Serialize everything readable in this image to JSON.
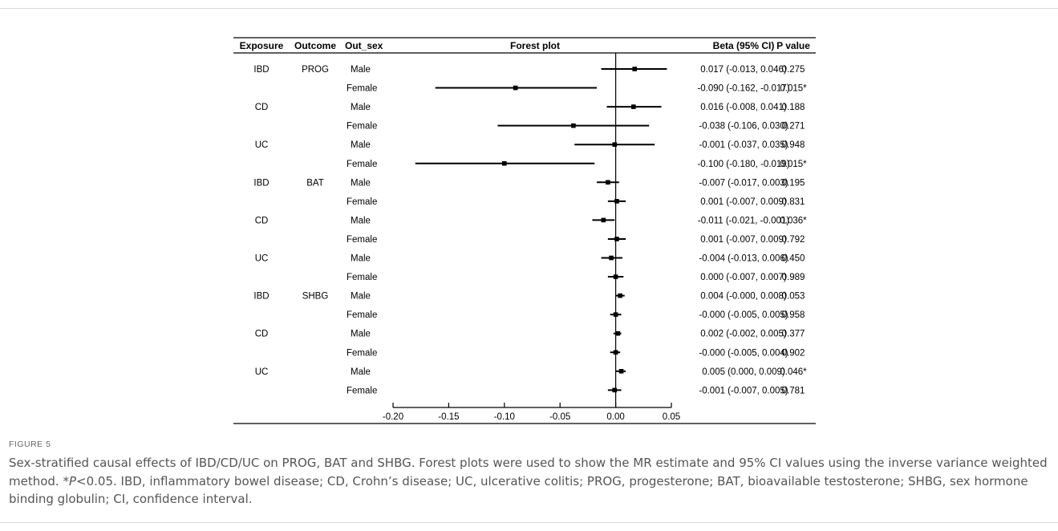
{
  "chart_data": {
    "type": "forest",
    "headers": {
      "exposure": "Exposure",
      "outcome": "Outcome",
      "out_sex": "Out_sex",
      "plot": "Forest plot",
      "beta": "Beta (95% CI)",
      "pvalue": "P value"
    },
    "xlim": [
      -0.2,
      0.05
    ],
    "xticks": [
      "-0.20",
      "-0.15",
      "-0.10",
      "-0.05",
      "0.00",
      "0.05"
    ],
    "reference_line": 0,
    "rows": [
      {
        "exposure": "IBD",
        "outcome": "PROG",
        "sex": "Male",
        "beta": 0.017,
        "lo": -0.013,
        "hi": 0.046,
        "ci_text": "0.017 (-0.013, 0.046)",
        "p": "0.275"
      },
      {
        "exposure": "",
        "outcome": "",
        "sex": "Female",
        "beta": -0.09,
        "lo": -0.162,
        "hi": -0.017,
        "ci_text": "-0.090 (-0.162, -0.017)",
        "p": "0.015*"
      },
      {
        "exposure": "CD",
        "outcome": "",
        "sex": "Male",
        "beta": 0.016,
        "lo": -0.008,
        "hi": 0.041,
        "ci_text": "0.016 (-0.008, 0.041)",
        "p": "0.188"
      },
      {
        "exposure": "",
        "outcome": "",
        "sex": "Female",
        "beta": -0.038,
        "lo": -0.106,
        "hi": 0.03,
        "ci_text": "-0.038 (-0.106, 0.030)",
        "p": "0.271"
      },
      {
        "exposure": "UC",
        "outcome": "",
        "sex": "Male",
        "beta": -0.001,
        "lo": -0.037,
        "hi": 0.035,
        "ci_text": "-0.001 (-0.037, 0.035)",
        "p": "0.948"
      },
      {
        "exposure": "",
        "outcome": "",
        "sex": "Female",
        "beta": -0.1,
        "lo": -0.18,
        "hi": -0.019,
        "ci_text": "-0.100 (-0.180, -0.019)",
        "p": "0.015*"
      },
      {
        "exposure": "IBD",
        "outcome": "BAT",
        "sex": "Male",
        "beta": -0.007,
        "lo": -0.017,
        "hi": 0.003,
        "ci_text": "-0.007 (-0.017, 0.003)",
        "p": "0.195"
      },
      {
        "exposure": "",
        "outcome": "",
        "sex": "Female",
        "beta": 0.001,
        "lo": -0.007,
        "hi": 0.009,
        "ci_text": "0.001 (-0.007, 0.009)",
        "p": "0.831"
      },
      {
        "exposure": "CD",
        "outcome": "",
        "sex": "Male",
        "beta": -0.011,
        "lo": -0.021,
        "hi": -0.001,
        "ci_text": "-0.011 (-0.021, -0.001)",
        "p": "0.036*"
      },
      {
        "exposure": "",
        "outcome": "",
        "sex": "Female",
        "beta": 0.001,
        "lo": -0.007,
        "hi": 0.009,
        "ci_text": "0.001 (-0.007, 0.009)",
        "p": "0.792"
      },
      {
        "exposure": "UC",
        "outcome": "",
        "sex": "Male",
        "beta": -0.004,
        "lo": -0.013,
        "hi": 0.006,
        "ci_text": "-0.004 (-0.013, 0.006)",
        "p": "0.450"
      },
      {
        "exposure": "",
        "outcome": "",
        "sex": "Female",
        "beta": 0.0,
        "lo": -0.007,
        "hi": 0.007,
        "ci_text": "0.000 (-0.007, 0.007)",
        "p": "0.989"
      },
      {
        "exposure": "IBD",
        "outcome": "SHBG",
        "sex": "Male",
        "beta": 0.004,
        "lo": -0.0,
        "hi": 0.008,
        "ci_text": "0.004 (-0.000, 0.008)",
        "p": "0.053"
      },
      {
        "exposure": "",
        "outcome": "",
        "sex": "Female",
        "beta": -0.0,
        "lo": -0.005,
        "hi": 0.005,
        "ci_text": "-0.000 (-0.005, 0.005)",
        "p": "0.958"
      },
      {
        "exposure": "CD",
        "outcome": "",
        "sex": "Male",
        "beta": 0.002,
        "lo": -0.002,
        "hi": 0.005,
        "ci_text": "0.002 (-0.002, 0.005)",
        "p": "0.377"
      },
      {
        "exposure": "",
        "outcome": "",
        "sex": "Female",
        "beta": -0.0,
        "lo": -0.005,
        "hi": 0.004,
        "ci_text": "-0.000 (-0.005, 0.004)",
        "p": "0.902"
      },
      {
        "exposure": "UC",
        "outcome": "",
        "sex": "Male",
        "beta": 0.005,
        "lo": 0.0,
        "hi": 0.009,
        "ci_text": "0.005 (0.000, 0.009)",
        "p": "0.046*"
      },
      {
        "exposure": "",
        "outcome": "",
        "sex": "Female",
        "beta": -0.001,
        "lo": -0.007,
        "hi": 0.005,
        "ci_text": "-0.001 (-0.007, 0.005)",
        "p": "0.781"
      }
    ]
  },
  "figure": {
    "label": "FIGURE 5",
    "caption_pre": "Sex-stratified causal effects of IBD/CD/UC on PROG, BAT and SHBG. Forest plots were used to show the MR estimate and 95% CI values using the inverse variance weighted method. *",
    "caption_italic": "P",
    "caption_post": "<0.05. IBD, inflammatory bowel disease; CD, Crohn’s disease; UC, ulcerative colitis; PROG, progesterone; BAT, bioavailable testosterone; SHBG, sex hormone binding globulin; CI, confidence interval."
  }
}
